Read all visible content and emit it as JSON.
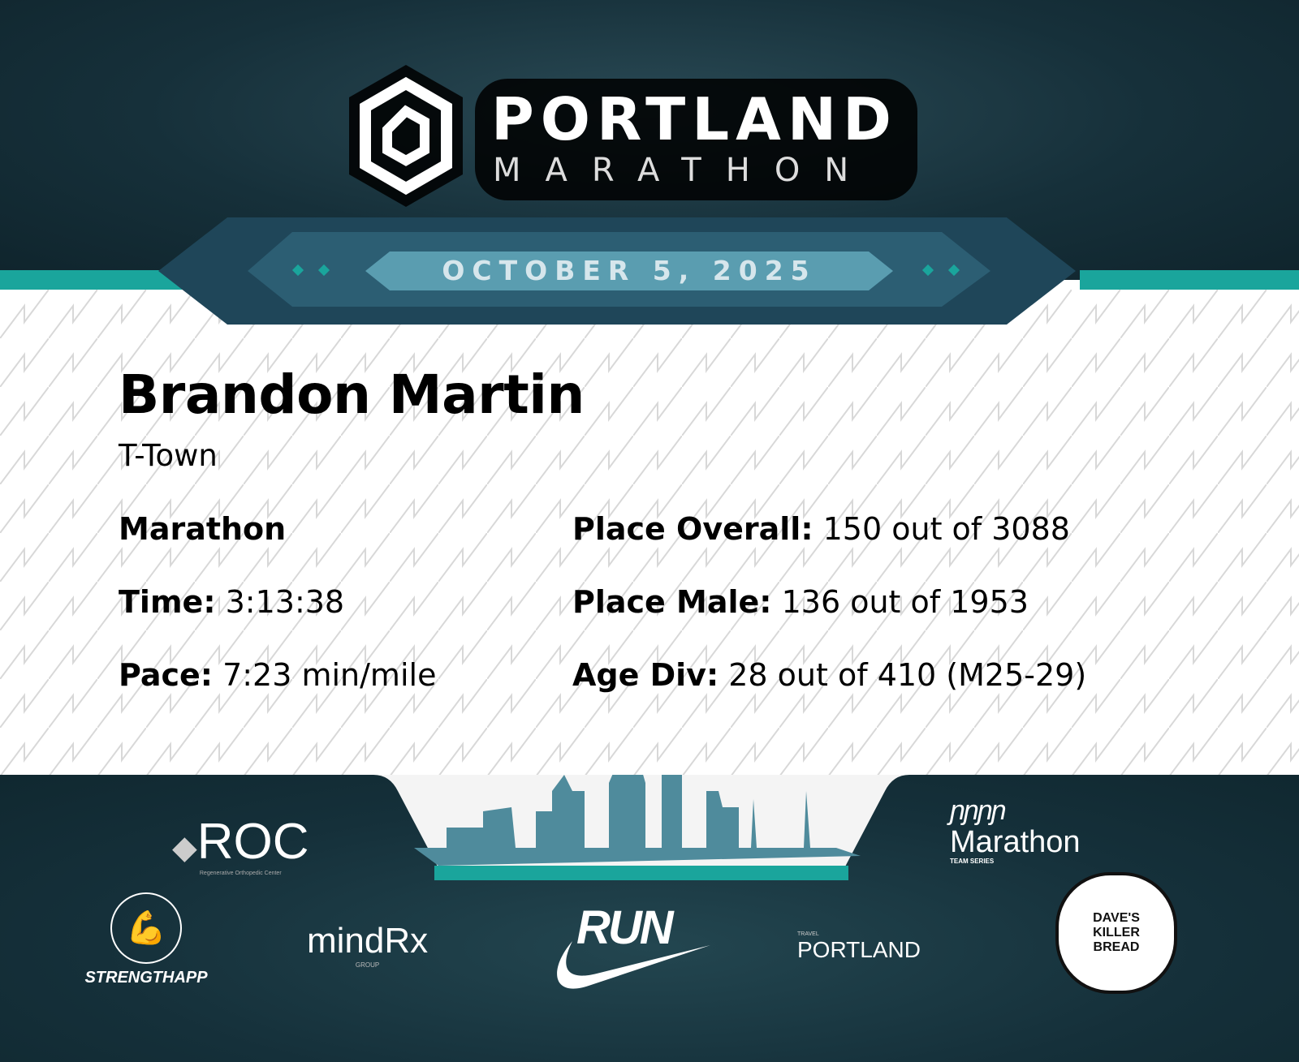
{
  "header": {
    "logo_line1": "PORTLAND",
    "logo_line2": "MARATHON",
    "date": "OCTOBER 5, 2025"
  },
  "runner": {
    "name": "Brandon Martin",
    "team": "T-Town"
  },
  "results": {
    "event": "Marathon",
    "time_label": "Time:",
    "time": "3:13:38",
    "pace_label": "Pace:",
    "pace": "7:23 min/mile",
    "overall_label": "Place Overall:",
    "overall": "150 out of 3088",
    "male_label": "Place Male:",
    "male": "136 out of 1953",
    "agediv_label": "Age Div:",
    "agediv": "28 out of 410 (M25-29)"
  },
  "sponsors": {
    "roc": "ROC",
    "roc_sub": "Regenerative Orthopedic Center",
    "marathon_series": "Marathon",
    "marathon_series_sub": "TEAM SERIES",
    "strengthapp": "STRENGTHAPP",
    "mindrx": "mindRx",
    "mindrx_sub": "GROUP",
    "nike": "RUN",
    "travel_portland_sub": "TRAVEL",
    "travel_portland": "PORTLAND",
    "daves": "DAVE'S KILLER BREAD"
  },
  "colors": {
    "teal": "#1aa59c",
    "dark": "#15303a",
    "banner": "#3f7e92"
  }
}
